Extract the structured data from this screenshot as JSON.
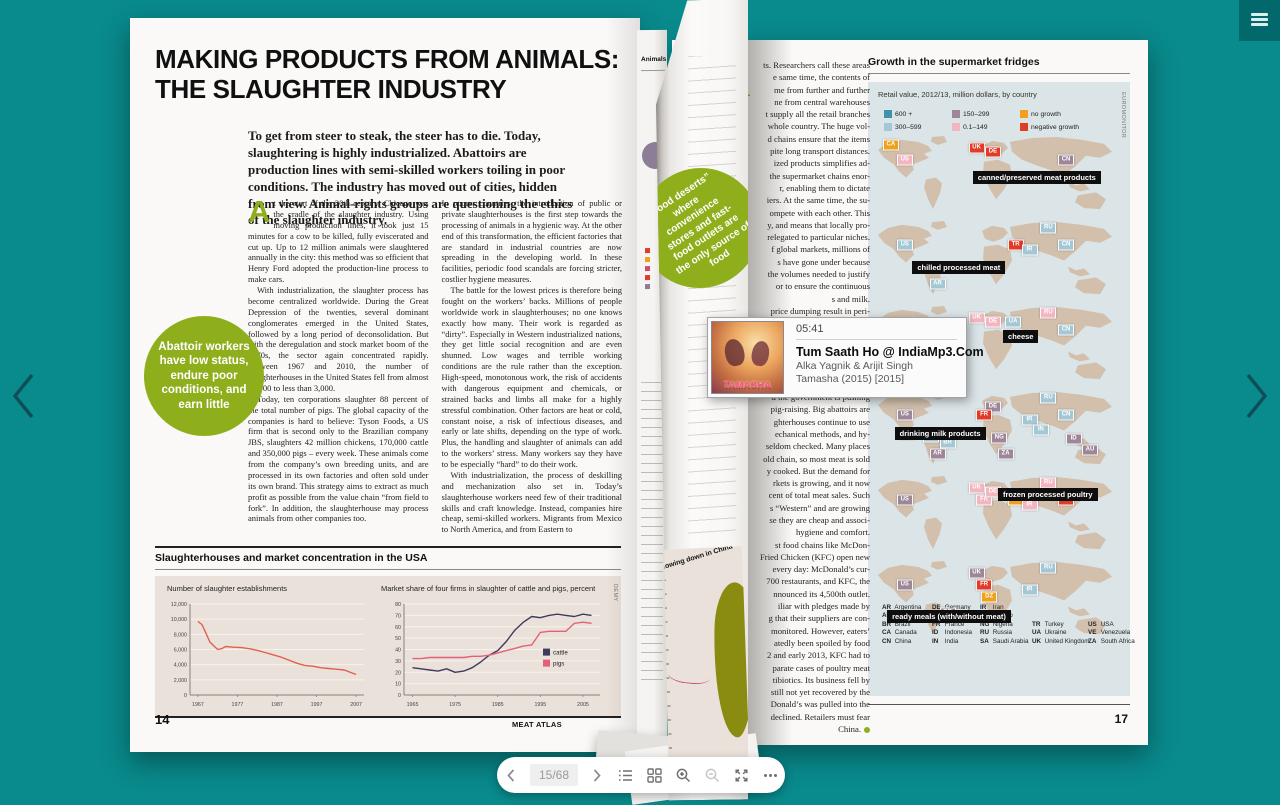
{
  "viewer": {
    "background_color": "#098a8c",
    "toolbar": {
      "page_indicator": "15/68",
      "icons": [
        "prev",
        "next",
        "list-view",
        "grid-view",
        "zoom-in",
        "zoom-out",
        "fullscreen",
        "more"
      ]
    }
  },
  "popup": {
    "time": "05:41",
    "title": "Tum Saath Ho @ IndiaMp3.Com",
    "artist": "Alka Yagnik & Arijit Singh",
    "album": "Tamasha (2015) [2015]",
    "art_text": "TAMASHA"
  },
  "left_page": {
    "page_number": "14",
    "footer": "MEAT ATLAS",
    "title": "MAKING PRODUCTS FROM ANIMALS: THE SLAUGHTER INDUSTRY",
    "intro": "To get from steer to steak, the steer has to die. Today, slaughtering is highly industrialized. Abattoirs are production lines with semi-skilled workers toiling in poor conditions. The industry has moved out of cities, hidden from view. Animal-rights groups are questioning the ethics of the slaughter industry.",
    "dropcap": "A",
    "col1": [
      "t the start of the 20th century, Chicago was the cradle of the slaughter industry. Using moving production lines, it took just 15 minutes for a cow to be killed, fully eviscerated and cut up. Up to 12 million animals were slaughtered annually in the city: this method was so efficient that Henry Ford adopted the production-line process to make cars.",
      "With industrialization, the slaughter process has become centralized worldwide. During the Great Depression of the twenties, several dominant conglomerates emerged in the United States, followed by a long period of deconsolidation. But with the deregulation and stock market boom of the 1970s, the sector again concentrated rapidly. Between 1967 and 2010, the number of slaughterhouses in the United States fell from almost 10,000 to less than 3,000.",
      "Today, ten corporations slaughter 88 percent of the total number of pigs. The global capacity of the companies is hard to believe: Tyson Foods, a US firm that is second only to the Brazilian company JBS, slaughters 42 million chickens, 170,000 cattle and 350,000 pigs – every week. These animals come from the company’s own breeding units, and are processed in its own factories and often sold under its own brand. This strategy aims to extract as much profit as possible from the value chain “from field to fork”. In addition, the slaughterhouse may process animals from other companies too."
    ],
    "col2": [
      "In poorer countries, the introduction of public or private slaughterhouses is the first step towards the processing of animals in a hygienic way. At the other end of this transformation, the efficient factories that are standard in industrial countries are now spreading in the developing world. In these facilities, periodic food scandals are forcing stricter, costlier hygiene measures.",
      "The battle for the lowest prices is therefore being fought on the workers’ backs. Millions of people worldwide work in slaughterhouses; no one knows exactly how many. Their work is regarded as “dirty”. Especially in Western industrialized nations, they get little social recognition and are even shunned. Low wages and terrible working conditions are the rule rather than the exception. High-speed, monotonous work, the risk of accidents with dangerous equipment and chemicals, or strained backs and limbs all make for a highly stressful combination. Other factors are heat or cold, constant noise, a risk of infectious diseases, and early or late shifts, depending on the type of work. Plus, the handling and slaughter of animals can add to the workers’ stress. Many workers say they have to be especially “hard” to do their work.",
      "With industrialization, the process of deskilling and mechanization also set in. Today’s slaughterhouse workers need few of their traditional skills and craft knowledge. Instead, companies hire cheap, semi-skilled workers. Migrants from Mexico to North America, and from Eastern to"
    ],
    "circle_text": "Abattoir workers have low status, endure poor conditions, and earn little",
    "chart_header": "Slaughterhouses and market concentration in the USA",
    "source": "DEMY"
  },
  "right_page": {
    "page_number": "17",
    "dropcap": "R",
    "end_dot": true,
    "text_lines": [
      "ts. Researchers call these areas",
      "e same time, the contents of",
      "me from further and further",
      "ne from central warehouses",
      "t supply all the retail branches",
      "whole country. The huge vol-",
      "d chains ensure that the items",
      "pite long transport distances.",
      "ized products simplifies ad-",
      "the supermarket chains enor-",
      "r, enabling them to dictate",
      "iers. At the same time, the su-",
      "ompete with each other. This",
      "y, and means that locally pro-",
      "relegated to particular niches.",
      "f global markets, millions of",
      "s have gone under because",
      "the volumes needed to justify",
      "or to ensure the continuous",
      "s and milk.",
      "price dumping result in peri-",
      "ving meat that is sold past its",
      "ed using hormones, or misla-",
      "y chains are particularly com-",
      "products. They have resulted",
      "are still raised by smallholders",
      "sive factory farms, although",
      "d the government is pushing",
      "pig-raising. Big abattoirs are",
      "ghterhouses continue to use",
      "echanical methods, and hy-",
      "seldom checked. Many places",
      "old chain, so most meat is sold",
      "y cooked. But the demand for",
      "rkets is growing, and it now",
      "cent of total meat sales. Such",
      "s “Western” and are growing",
      "se they are cheap and associ-",
      "hygiene and comfort.",
      "st food chains like McDon-",
      "Fried Chicken (KFC) open new",
      "every day: McDonald’s cur-",
      "700 restaurants, and KFC, the",
      "nnounced its 4,500th outlet.",
      "iliar with pledges made by",
      "g that their suppliers are con-",
      "monitored. However, eaters’",
      "atedly been spoiled by food",
      "2 and early 2013, KFC had to",
      "parate cases of poultry meat",
      "tibiotics. Its business fell by",
      "still not yet recovered by the",
      "Donald’s was pulled into the",
      "declined. Retailers must fear",
      "China."
    ],
    "map_header": "Growth in the supermarket fridges",
    "subtitle": "Retail value, 2012/13, million dollars, by country",
    "source": "EUROMONITOR",
    "category_colors": {
      "600+": "#3f93a9",
      "300-599": "#a4c7d6",
      "150-299": "#9d8698",
      "0.1-149": "#f3b5bf",
      "no growth": "#f0a01c",
      "negative growth": "#e13b26"
    },
    "legend": [
      {
        "label": "600 +",
        "cat": "600+"
      },
      {
        "label": "300–599",
        "cat": "300-599"
      },
      {
        "label": "150–299",
        "cat": "150-299"
      },
      {
        "label": "0.1–149",
        "cat": "0.1-149"
      },
      {
        "label": "no growth",
        "cat": "no growth"
      },
      {
        "label": "negative growth",
        "cat": "negative growth"
      }
    ],
    "countries": [
      [
        [
          "AR",
          "Argentina"
        ],
        [
          "AU",
          "Australia"
        ],
        [
          "BR",
          "Brazil"
        ],
        [
          "CA",
          "Canada"
        ],
        [
          "CN",
          "China"
        ]
      ],
      [
        [
          "DE",
          "Germany"
        ],
        [
          "DZ",
          "Algeria"
        ],
        [
          "FR",
          "France"
        ],
        [
          "ID",
          "Indonesia"
        ],
        [
          "IN",
          "India"
        ]
      ],
      [
        [
          "IR",
          "Iran"
        ],
        [
          "MX",
          "Mexico"
        ],
        [
          "NG",
          "Nigeria"
        ],
        [
          "RU",
          "Russia"
        ],
        [
          "SA",
          "Saudi Arabia"
        ]
      ],
      [
        [
          "",
          ""
        ],
        [
          "",
          ""
        ],
        [
          "TR",
          "Turkey"
        ],
        [
          "UA",
          "Ukraine"
        ],
        [
          "UK",
          "United Kingdom"
        ]
      ],
      [
        [
          "",
          ""
        ],
        [
          "",
          ""
        ],
        [
          "US",
          "USA"
        ],
        [
          "VE",
          "Venezuela"
        ],
        [
          "ZA",
          "South Africa"
        ]
      ]
    ]
  },
  "turning_page": {
    "circle_text": "“Food deserts” where convenience stores and fast-food outlets are the only source of food",
    "mini_chart_title": "Slowing down in China",
    "back_page_header": "Animals"
  },
  "chart_data": [
    {
      "type": "line",
      "title": "Number of slaughter establishments",
      "x": [
        1967,
        1968,
        1969,
        1970,
        1971,
        1972,
        1973,
        1974,
        1976,
        1978,
        1980,
        1982,
        1984,
        1986,
        1988,
        1990,
        1992,
        1994,
        1996,
        1998,
        2000,
        2002,
        2004,
        2007
      ],
      "values": [
        9700,
        9300,
        8200,
        7000,
        6500,
        6000,
        6100,
        6400,
        6300,
        6250,
        6100,
        5900,
        5600,
        5300,
        5000,
        4600,
        4200,
        3900,
        3800,
        3600,
        3500,
        3400,
        3300,
        2700
      ],
      "color": "#e2604b",
      "xlim": [
        1965,
        2009
      ],
      "ylim": [
        0,
        12000
      ],
      "ytick_step": 2000,
      "xticks": [
        1967,
        1977,
        1987,
        1997,
        2007
      ]
    },
    {
      "type": "line",
      "title": "Market share of four firms in slaughter of cattle and pigs, percent",
      "series": [
        {
          "name": "cattle",
          "color": "#3f3a5e",
          "x": [
            1965,
            1967,
            1969,
            1971,
            1973,
            1975,
            1977,
            1979,
            1981,
            1983,
            1985,
            1987,
            1989,
            1991,
            1993,
            1995,
            1997,
            1999,
            2001,
            2003,
            2005,
            2007
          ],
          "values": [
            24,
            23,
            22,
            21,
            23,
            20,
            21,
            24,
            29,
            35,
            39,
            47,
            57,
            64,
            69,
            68,
            70,
            71,
            70,
            69,
            71,
            70
          ]
        },
        {
          "name": "pigs",
          "color": "#e4607a",
          "x": [
            1965,
            1967,
            1969,
            1971,
            1973,
            1975,
            1977,
            1979,
            1981,
            1983,
            1985,
            1987,
            1989,
            1991,
            1993,
            1995,
            1997,
            1999,
            2001,
            2003,
            2005,
            2007
          ],
          "values": [
            32,
            32,
            33,
            33,
            33,
            33,
            33,
            34,
            34,
            35,
            37,
            39,
            41,
            43,
            44,
            55,
            56,
            56,
            56,
            63,
            64,
            63
          ]
        }
      ],
      "xlim": [
        1963,
        2009
      ],
      "ylim": [
        0,
        80
      ],
      "ytick_step": 10,
      "xticks": [
        1965,
        1975,
        1985,
        1995,
        2005
      ]
    },
    {
      "type": "map-grid",
      "title": "Growth in the supermarket fridges",
      "maps": [
        {
          "label": "canned/preserved meat products",
          "label_pos": [
            40,
            44
          ],
          "badges": [
            {
              "code": "CA",
              "cat": "no growth"
            },
            {
              "code": "US",
              "cat": "0.1-149"
            },
            {
              "code": "UK",
              "cat": "negative growth"
            },
            {
              "code": "DE",
              "cat": "negative growth"
            },
            {
              "code": "CN",
              "cat": "150-299"
            }
          ]
        },
        {
          "label": "chilled processed meat",
          "label_pos": [
            16,
            49
          ],
          "badges": [
            {
              "code": "US",
              "cat": "300-599"
            },
            {
              "code": "AR",
              "cat": "300-599"
            },
            {
              "code": "TR",
              "cat": "negative growth"
            },
            {
              "code": "RU",
              "cat": "300-599"
            },
            {
              "code": "IR",
              "cat": "300-599"
            },
            {
              "code": "CN",
              "cat": "300-599"
            }
          ]
        },
        {
          "label": "cheese",
          "label_pos": [
            52,
            30
          ],
          "badges": [
            {
              "code": "US",
              "cat": "600+"
            },
            {
              "code": "UK",
              "cat": "0.1-149"
            },
            {
              "code": "DE",
              "cat": "0.1-149"
            },
            {
              "code": "RU",
              "cat": "0.1-149"
            },
            {
              "code": "UA",
              "cat": "300-599"
            },
            {
              "code": "CN",
              "cat": "300-599"
            }
          ]
        },
        {
          "label": "drinking milk products",
          "label_pos": [
            9,
            45
          ],
          "badges": [
            {
              "code": "US",
              "cat": "150-299"
            },
            {
              "code": "MX",
              "cat": "300-599"
            },
            {
              "code": "VE",
              "cat": "300-599"
            },
            {
              "code": "AR",
              "cat": "150-299"
            },
            {
              "code": "BR",
              "cat": "300-599"
            },
            {
              "code": "DE",
              "cat": "150-299"
            },
            {
              "code": "FR",
              "cat": "negative growth"
            },
            {
              "code": "NG",
              "cat": "150-299"
            },
            {
              "code": "ZA",
              "cat": "150-299"
            },
            {
              "code": "RU",
              "cat": "300-599"
            },
            {
              "code": "IR",
              "cat": "300-599"
            },
            {
              "code": "IN",
              "cat": "300-599"
            },
            {
              "code": "CN",
              "cat": "300-599"
            },
            {
              "code": "ID",
              "cat": "150-299"
            },
            {
              "code": "AU",
              "cat": "150-299"
            }
          ]
        },
        {
          "label": "frozen processed poultry",
          "label_pos": [
            50,
            16
          ],
          "badges": [
            {
              "code": "US",
              "cat": "150-299"
            },
            {
              "code": "UK",
              "cat": "0.1-149"
            },
            {
              "code": "FR",
              "cat": "0.1-149"
            },
            {
              "code": "DE",
              "cat": "0.1-149"
            },
            {
              "code": "RU",
              "cat": "0.1-149"
            },
            {
              "code": "TR",
              "cat": "no growth"
            },
            {
              "code": "IR",
              "cat": "0.1-149"
            },
            {
              "code": "CN",
              "cat": "negative growth"
            }
          ]
        },
        {
          "label": "ready meals (with/without meat)",
          "label_pos": [
            6,
            60
          ],
          "badges": [
            {
              "code": "US",
              "cat": "150-299"
            },
            {
              "code": "UK",
              "cat": "150-299"
            },
            {
              "code": "FR",
              "cat": "negative growth"
            },
            {
              "code": "DZ",
              "cat": "no growth"
            },
            {
              "code": "BR",
              "cat": "150-299"
            },
            {
              "code": "RU",
              "cat": "300-599"
            },
            {
              "code": "IR",
              "cat": "300-599"
            }
          ]
        }
      ]
    }
  ]
}
